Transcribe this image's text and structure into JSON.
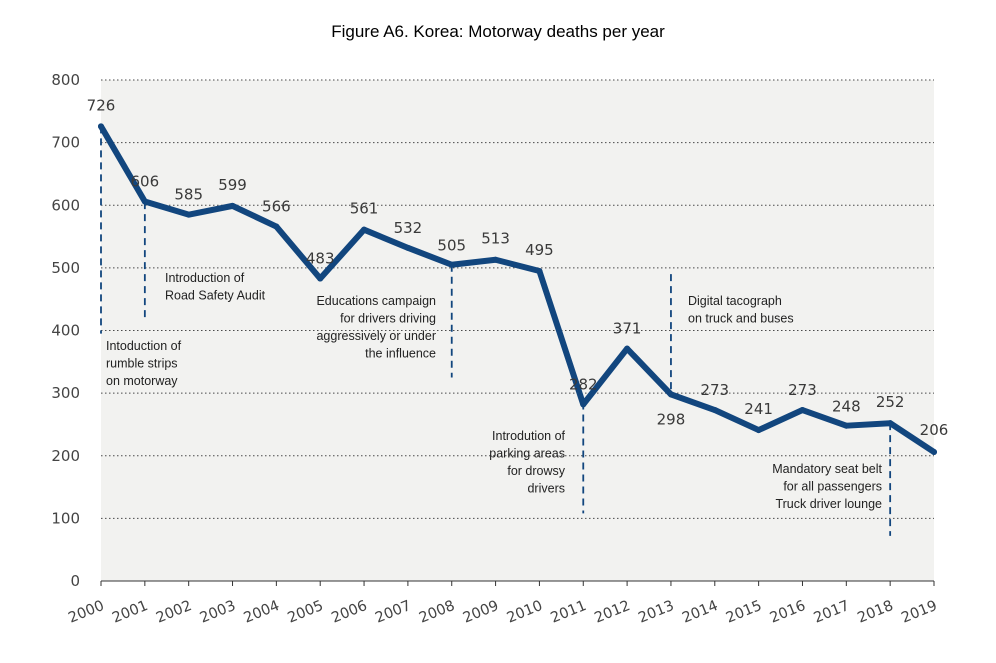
{
  "chart_data": {
    "type": "line",
    "title": "Figure A6. Korea: Motorway deaths per year",
    "xlabel": "",
    "ylabel": "",
    "ylim": [
      0,
      800
    ],
    "yticks": [
      "0",
      "100",
      "200",
      "300",
      "400",
      "500",
      "600",
      "700",
      "800"
    ],
    "grid": true,
    "categories": [
      "2000",
      "2001",
      "2002",
      "2003",
      "2004",
      "2005",
      "2006",
      "2007",
      "2008",
      "2009",
      "2010",
      "2011",
      "2012",
      "2013",
      "2014",
      "2015",
      "2016",
      "2017",
      "2018",
      "2019"
    ],
    "values": [
      726,
      606,
      585,
      599,
      566,
      483,
      561,
      532,
      505,
      513,
      495,
      282,
      371,
      298,
      273,
      241,
      273,
      248,
      252,
      206
    ],
    "line_color": "#12467e",
    "plot_bg": "#f2f2f0",
    "annotations": [
      {
        "year": "2000",
        "lines": [
          "Intoduction of",
          "rumble strips",
          "on motorway"
        ]
      },
      {
        "year": "2001",
        "lines": [
          "Introduction of",
          "Road Safety Audit"
        ]
      },
      {
        "year": "2008",
        "lines": [
          "Educations campaign",
          "for drivers driving",
          "aggressively or under",
          "the influence"
        ]
      },
      {
        "year": "2011",
        "lines": [
          "Introdution of",
          "parking areas",
          "for drowsy",
          "drivers"
        ]
      },
      {
        "year": "2013",
        "lines": [
          "Digital tacograph",
          "on truck and buses"
        ]
      },
      {
        "year": "2018",
        "lines": [
          "Mandatory seat belt",
          "for all passengers",
          "Truck driver lounge"
        ]
      }
    ]
  }
}
